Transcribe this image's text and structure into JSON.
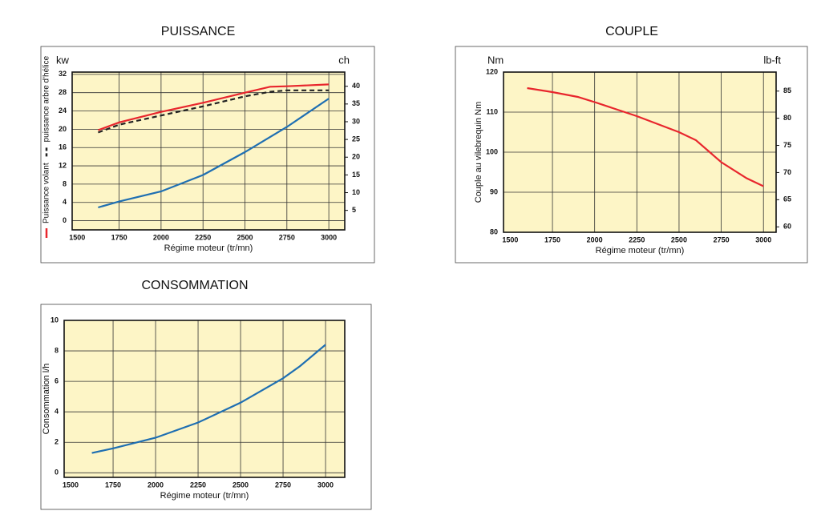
{
  "chart_data": [
    {
      "type": "line",
      "title": "PUISSANCE",
      "xlabel": "Régime moteur (tr/mn)",
      "y_unit": "kw",
      "y2_unit": "ch",
      "xlim": [
        1470,
        3095
      ],
      "xticks": [
        1500,
        1750,
        2000,
        2250,
        2500,
        2750,
        3000
      ],
      "ylim": [
        -2,
        32.5
      ],
      "yticks": [
        0,
        4,
        8,
        12,
        16,
        20,
        24,
        28,
        32
      ],
      "y2lim": [
        -0.5,
        44
      ],
      "y2ticks": [
        5,
        10,
        15,
        20,
        25,
        30,
        35,
        40
      ],
      "grid": true,
      "series": [
        {
          "name": "Puissance volant",
          "color": "#e8262d",
          "dash": false,
          "x": [
            1625,
            1750,
            2000,
            2250,
            2500,
            2650,
            2750,
            3000
          ],
          "values": [
            19.8,
            21.5,
            23.8,
            25.8,
            28,
            29.3,
            29.4,
            29.8
          ]
        },
        {
          "name": "puissance arbre d'hélice",
          "color": "#222222",
          "dash": true,
          "x": [
            1625,
            1750,
            2000,
            2250,
            2500,
            2650,
            2750,
            3000
          ],
          "values": [
            19.3,
            21,
            23,
            25,
            27.2,
            28.2,
            28.5,
            28.5
          ]
        },
        {
          "color": "#1f6fb2",
          "dash": false,
          "x": [
            1625,
            1750,
            2000,
            2250,
            2500,
            2750,
            3000
          ],
          "values": [
            2.9,
            4.2,
            6.4,
            10,
            15,
            20.5,
            26.7
          ]
        }
      ]
    },
    {
      "type": "line",
      "title": "COUPLE",
      "xlabel": "Régime moteur (tr/mn)",
      "ylabel": "Couple au vilebrequin Nm",
      "y_unit": "Nm",
      "y2_unit": "lb-ft",
      "xlim": [
        1460,
        3075
      ],
      "xticks": [
        1500,
        1750,
        2000,
        2250,
        2500,
        2750,
        3000
      ],
      "ylim": [
        80,
        120
      ],
      "yticks": [
        80,
        90,
        100,
        110,
        120
      ],
      "y2lim": [
        59,
        88.5
      ],
      "y2ticks": [
        60,
        65,
        70,
        75,
        80,
        85
      ],
      "grid": true,
      "series": [
        {
          "color": "#e8262d",
          "dash": false,
          "x": [
            1600,
            1750,
            1900,
            2000,
            2250,
            2500,
            2600,
            2750,
            2900,
            3000
          ],
          "values": [
            116,
            115,
            113.8,
            112.5,
            109,
            105,
            103,
            97.5,
            93.5,
            91.5
          ]
        }
      ]
    },
    {
      "type": "line",
      "title": "CONSOMMATION",
      "xlabel": "Régime moteur (tr/mn)",
      "ylabel": "Consommation l/h",
      "xlim": [
        1462,
        3113
      ],
      "xticks": [
        1500,
        1750,
        2000,
        2250,
        2500,
        2750,
        3000
      ],
      "ylim": [
        -0.3,
        10
      ],
      "yticks": [
        0,
        2,
        4,
        6,
        8,
        10
      ],
      "grid": true,
      "series": [
        {
          "color": "#1f6fb2",
          "dash": false,
          "x": [
            1625,
            1750,
            2000,
            2250,
            2500,
            2750,
            2850,
            3000
          ],
          "values": [
            1.3,
            1.6,
            2.3,
            3.3,
            4.6,
            6.2,
            7,
            8.4
          ]
        }
      ]
    }
  ]
}
